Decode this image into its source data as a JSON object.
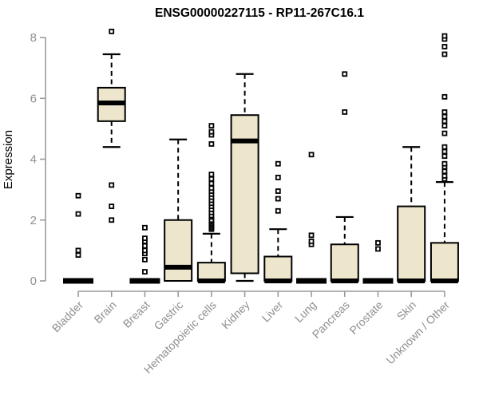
{
  "page": {
    "background": "#ffffff"
  },
  "chart_data": {
    "type": "boxplot",
    "title": "ENSG00000227115 - RP11-267C16.1",
    "ylabel": "Expression",
    "xlabel": "",
    "ylim": [
      0,
      8
    ],
    "yticks": [
      0,
      2,
      4,
      6,
      8
    ],
    "grid": false,
    "legend": "none",
    "title_color": "#000000",
    "axis_color": "#9b9b9b",
    "label_color": "#8f8f8f",
    "box_fill": "#ede6cc",
    "box_stroke": "#000000",
    "categories": [
      "Bladder",
      "Brain",
      "Breast",
      "Gastric",
      "Hematopoietic cells",
      "Kidney",
      "Liver",
      "Lung",
      "Pancreas",
      "Prostate",
      "Skin",
      "Unknown / Other"
    ],
    "series": [
      {
        "name": "Bladder",
        "q1": 0,
        "median": 0,
        "q3": 0,
        "whisker_low": 0,
        "whisker_high": 0,
        "outliers": [
          0.85,
          1.0,
          2.2,
          2.8
        ]
      },
      {
        "name": "Brain",
        "q1": 5.25,
        "median": 5.85,
        "q3": 6.35,
        "whisker_low": 4.4,
        "whisker_high": 7.45,
        "outliers": [
          2.0,
          2.45,
          3.15,
          8.2
        ]
      },
      {
        "name": "Breast",
        "q1": 0,
        "median": 0,
        "q3": 0,
        "whisker_low": 0,
        "whisker_high": 0,
        "outliers": [
          0.3,
          0.7,
          0.9,
          1.0,
          1.15,
          1.3,
          1.4,
          1.75
        ]
      },
      {
        "name": "Gastric",
        "q1": 0,
        "median": 0.45,
        "q3": 2.0,
        "whisker_low": 0,
        "whisker_high": 4.65,
        "outliers": []
      },
      {
        "name": "Hematopoietic cells",
        "q1": 0,
        "median": 0,
        "q3": 0.6,
        "whisker_low": 0,
        "whisker_high": 1.55,
        "outliers": [
          1.7,
          1.75,
          1.8,
          1.85,
          1.9,
          1.95,
          2.0,
          2.1,
          2.15,
          2.25,
          2.35,
          2.45,
          2.55,
          2.65,
          2.75,
          2.85,
          2.95,
          3.05,
          3.2,
          3.35,
          3.5,
          4.5,
          4.8,
          4.9,
          5.1
        ]
      },
      {
        "name": "Kidney",
        "q1": 0.25,
        "median": 4.6,
        "q3": 5.45,
        "whisker_low": 0,
        "whisker_high": 6.8,
        "outliers": []
      },
      {
        "name": "Liver",
        "q1": 0,
        "median": 0,
        "q3": 0.8,
        "whisker_low": 0,
        "whisker_high": 1.7,
        "outliers": [
          2.3,
          2.7,
          2.95,
          3.4,
          3.85
        ]
      },
      {
        "name": "Lung",
        "q1": 0,
        "median": 0,
        "q3": 0,
        "whisker_low": 0,
        "whisker_high": 0,
        "outliers": [
          1.2,
          1.3,
          1.5,
          4.15
        ]
      },
      {
        "name": "Pancreas",
        "q1": 0,
        "median": 0,
        "q3": 1.2,
        "whisker_low": 0,
        "whisker_high": 2.1,
        "outliers": [
          5.55,
          6.8
        ]
      },
      {
        "name": "Prostate",
        "q1": 0,
        "median": 0,
        "q3": 0,
        "whisker_low": 0,
        "whisker_high": 0,
        "outliers": [
          1.05,
          1.25
        ]
      },
      {
        "name": "Skin",
        "q1": 0,
        "median": 0,
        "q3": 2.45,
        "whisker_low": 0,
        "whisker_high": 4.4,
        "outliers": []
      },
      {
        "name": "Unknown / Other",
        "q1": 0,
        "median": 0,
        "q3": 1.25,
        "whisker_low": 0,
        "whisker_high": 3.25,
        "outliers": [
          3.35,
          3.45,
          3.6,
          3.75,
          3.85,
          4.1,
          4.25,
          4.4,
          4.85,
          5.1,
          5.25,
          5.4,
          5.55,
          6.05,
          7.45,
          7.7,
          7.95,
          8.05
        ]
      }
    ]
  }
}
